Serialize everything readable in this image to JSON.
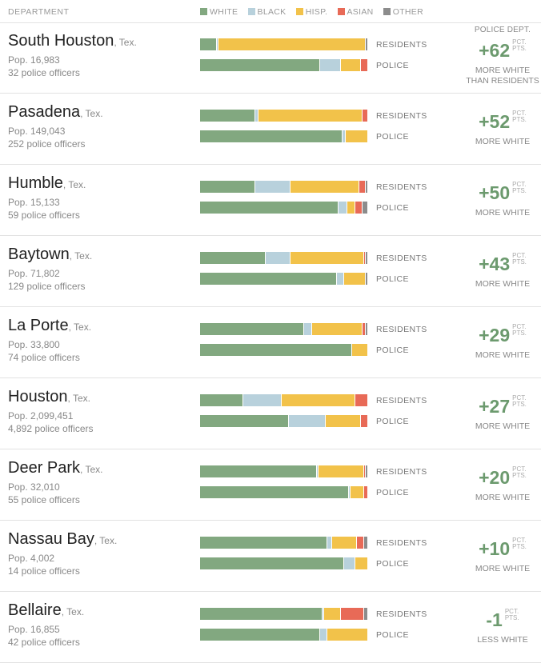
{
  "header": {
    "department_label": "DEPARTMENT",
    "legend": [
      {
        "label": "WHITE",
        "color": "#82a880"
      },
      {
        "label": "BLACK",
        "color": "#b8d1dc"
      },
      {
        "label": "HISP.",
        "color": "#f2c24a"
      },
      {
        "label": "ASIAN",
        "color": "#e86a57"
      },
      {
        "label": "OTHER",
        "color": "#8c8c8c"
      }
    ]
  },
  "labels": {
    "residents": "RESIDENTS",
    "police": "POLICE",
    "unit_top": "PCT.",
    "unit_bottom": "PTS."
  },
  "chart_data": {
    "type": "bar",
    "subtype": "stacked-horizontal-100",
    "categories": [
      "White",
      "Black",
      "Hisp.",
      "Asian",
      "Other"
    ],
    "colors": [
      "#82a880",
      "#b8d1dc",
      "#f2c24a",
      "#e86a57",
      "#8c8c8c"
    ],
    "rows": [
      {
        "city": "South Houston",
        "state": ", Tex.",
        "pop": "Pop. 16,983",
        "officers": "32 police officers",
        "residents": [
          10,
          1,
          88,
          0,
          1
        ],
        "police": [
          72,
          12,
          12,
          4,
          0
        ],
        "diff": "+62",
        "pre": "POLICE DEPT.",
        "label1": "MORE WHITE",
        "label2": "THAN RESIDENTS"
      },
      {
        "city": "Pasadena",
        "state": ", Tex.",
        "pop": "Pop. 149,043",
        "officers": "252 police officers",
        "residents": [
          33,
          2,
          62,
          3,
          0
        ],
        "police": [
          85,
          2,
          13,
          0,
          0
        ],
        "diff": "+52",
        "pre": "",
        "label1": "MORE WHITE",
        "label2": ""
      },
      {
        "city": "Humble",
        "state": ", Tex.",
        "pop": "Pop. 15,133",
        "officers": "59 police officers",
        "residents": [
          33,
          21,
          41,
          4,
          1
        ],
        "police": [
          83,
          5,
          5,
          4,
          3
        ],
        "diff": "+50",
        "pre": "",
        "label1": "MORE WHITE",
        "label2": ""
      },
      {
        "city": "Baytown",
        "state": ", Tex.",
        "pop": "Pop. 71,802",
        "officers": "129 police officers",
        "residents": [
          39,
          15,
          44,
          1,
          1
        ],
        "police": [
          82,
          4,
          13,
          0,
          1
        ],
        "diff": "+43",
        "pre": "",
        "label1": "MORE WHITE",
        "label2": ""
      },
      {
        "city": "La Porte",
        "state": ", Tex.",
        "pop": "Pop. 33,800",
        "officers": "74 police officers",
        "residents": [
          62,
          5,
          30,
          2,
          1
        ],
        "police": [
          91,
          0,
          9,
          0,
          0
        ],
        "diff": "+29",
        "pre": "",
        "label1": "MORE WHITE",
        "label2": ""
      },
      {
        "city": "Houston",
        "state": ", Tex.",
        "pop": "Pop. 2,099,451",
        "officers": "4,892 police officers",
        "residents": [
          26,
          23,
          44,
          7,
          0
        ],
        "police": [
          53,
          22,
          21,
          4,
          0
        ],
        "diff": "+27",
        "pre": "",
        "label1": "MORE WHITE",
        "label2": ""
      },
      {
        "city": "Deer Park",
        "state": ", Tex.",
        "pop": "Pop. 32,010",
        "officers": "55 police officers",
        "residents": [
          70,
          1,
          27,
          1,
          1
        ],
        "police": [
          89,
          1,
          8,
          2,
          0
        ],
        "diff": "+20",
        "pre": "",
        "label1": "MORE WHITE",
        "label2": ""
      },
      {
        "city": "Nassau Bay",
        "state": ", Tex.",
        "pop": "Pop. 4,002",
        "officers": "14 police officers",
        "residents": [
          76,
          3,
          15,
          4,
          2
        ],
        "police": [
          86,
          7,
          7,
          0,
          0
        ],
        "diff": "+10",
        "pre": "",
        "label1": "MORE WHITE",
        "label2": ""
      },
      {
        "city": "Bellaire",
        "state": ", Tex.",
        "pop": "Pop. 16,855",
        "officers": "42 police officers",
        "residents": [
          73,
          1,
          10,
          14,
          2
        ],
        "police": [
          72,
          4,
          24,
          0,
          0
        ],
        "diff": "-1",
        "pre": "",
        "label1": "LESS WHITE",
        "label2": ""
      }
    ]
  }
}
